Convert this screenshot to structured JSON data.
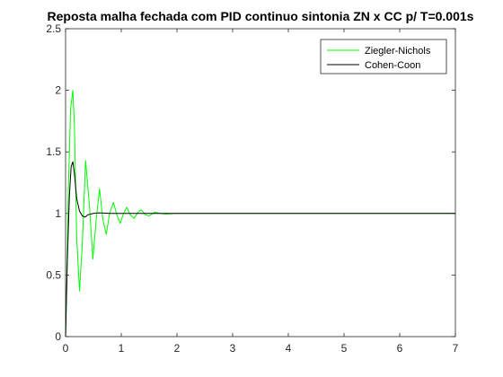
{
  "chart_data": {
    "type": "line",
    "title": "Reposta malha fechada com PID continuo sintonia ZN x CC p/ T=0.001s",
    "xlabel": "",
    "ylabel": "",
    "xlim": [
      0,
      7
    ],
    "ylim": [
      0,
      2.5
    ],
    "x_ticks": [
      "0",
      "1",
      "2",
      "3",
      "4",
      "5",
      "6",
      "7"
    ],
    "y_ticks": [
      "0",
      "0.5",
      "1",
      "1.5",
      "2",
      "2.5"
    ],
    "grid": false,
    "legend_position": "top-right",
    "series": [
      {
        "name": "Ziegler-Nichols",
        "color": "#00ff00",
        "x": [
          0,
          0.02,
          0.05,
          0.09,
          0.13,
          0.16,
          0.2,
          0.25,
          0.3,
          0.36,
          0.43,
          0.49,
          0.55,
          0.61,
          0.67,
          0.73,
          0.79,
          0.86,
          0.92,
          0.98,
          1.04,
          1.1,
          1.16,
          1.23,
          1.3,
          1.36,
          1.43,
          1.5,
          1.6,
          1.7,
          1.8,
          2.0,
          2.5,
          3,
          4,
          5,
          6,
          7
        ],
        "y": [
          0,
          0.4,
          1.2,
          1.85,
          2.0,
          1.7,
          0.8,
          0.37,
          0.75,
          1.43,
          1.05,
          0.63,
          0.95,
          1.2,
          0.95,
          0.83,
          1.0,
          1.09,
          0.99,
          0.92,
          1.0,
          1.05,
          0.99,
          0.96,
          1.01,
          1.03,
          0.99,
          0.98,
          1.01,
          1.0,
          0.995,
          1.0,
          1.0,
          1.0,
          1.0,
          1.0,
          1.0,
          1.0
        ]
      },
      {
        "name": "Cohen-Coon",
        "color": "#000000",
        "x": [
          0,
          0.03,
          0.07,
          0.1,
          0.13,
          0.16,
          0.2,
          0.25,
          0.3,
          0.35,
          0.4,
          0.5,
          0.6,
          0.8,
          1.0,
          1.5,
          2,
          3,
          4,
          5,
          6,
          7
        ],
        "y": [
          0,
          0.6,
          1.15,
          1.38,
          1.42,
          1.32,
          1.12,
          1.02,
          0.98,
          0.97,
          0.99,
          1.0,
          1.005,
          1.0,
          1.0,
          1.0,
          1.0,
          1.0,
          1.0,
          1.0,
          1.0,
          1.0
        ]
      }
    ]
  }
}
